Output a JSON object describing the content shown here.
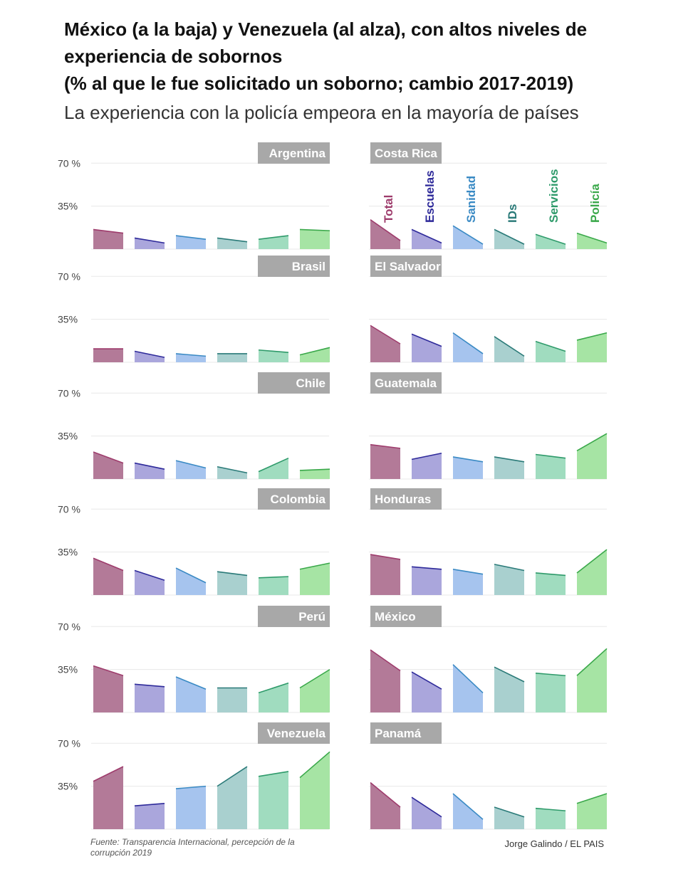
{
  "title": {
    "line1": "México (a la baja) y Venezuela (al alza), con altos niveles de experiencia de sobornos",
    "line2": "(% al que le fue solicitado un soborno; cambio 2017-2019)"
  },
  "subtitle": "La experiencia con la policía empeora en la mayoría de países",
  "footer": {
    "source": "Fuente: Transparencia Internacional, percepción de la corrupción 2019",
    "credit": "Jorge Galindo / EL PAIS"
  },
  "colors": {
    "Total": "#9e3c6c",
    "Escuelas": "#2e2a9a",
    "Sanidad": "#3a8ac4",
    "IDs": "#2a7a78",
    "Servicios": "#2e9a6a",
    "Policía": "#3aa84a",
    "fill_Total": "#b37a98",
    "fill_Escuelas": "#aaa6dc",
    "fill_Sanidad": "#a6c4ee",
    "fill_IDs": "#a9d0cf",
    "fill_Servicios": "#a0dcbf",
    "fill_Policía": "#a6e4a4",
    "label_bg": "#a8a8a8"
  },
  "chart_data": {
    "type": "area",
    "ylim": [
      0,
      70
    ],
    "yticks": [
      "70 %",
      "35%"
    ],
    "categories": [
      "Total",
      "Escuelas",
      "Sanidad",
      "IDs",
      "Servicios",
      "Policía"
    ],
    "x": [
      "2017",
      "2019"
    ],
    "panels": [
      {
        "country": "Argentina",
        "series": {
          "Total": [
            16,
            13
          ],
          "Escuelas": [
            9,
            5
          ],
          "Sanidad": [
            11,
            8
          ],
          "IDs": [
            9,
            6
          ],
          "Servicios": [
            8,
            11
          ],
          "Policía": [
            16,
            15
          ]
        }
      },
      {
        "country": "Costa Rica",
        "series": {
          "Total": [
            24,
            7
          ],
          "Escuelas": [
            16,
            5
          ],
          "Sanidad": [
            19,
            4
          ],
          "IDs": [
            16,
            4
          ],
          "Servicios": [
            12,
            4
          ],
          "Policía": [
            13,
            5
          ]
        }
      },
      {
        "country": "Brasil",
        "series": {
          "Total": [
            11,
            11
          ],
          "Escuelas": [
            9,
            4
          ],
          "Sanidad": [
            7,
            5
          ],
          "IDs": [
            7,
            7
          ],
          "Servicios": [
            10,
            8
          ],
          "Policía": [
            6,
            12
          ]
        }
      },
      {
        "country": "El Salvador",
        "series": {
          "Total": [
            30,
            15
          ],
          "Escuelas": [
            23,
            13
          ],
          "Sanidad": [
            24,
            7
          ],
          "IDs": [
            21,
            5
          ],
          "Servicios": [
            17,
            9
          ],
          "Policía": [
            18,
            24
          ]
        }
      },
      {
        "country": "Chile",
        "series": {
          "Total": [
            22,
            13
          ],
          "Escuelas": [
            13,
            8
          ],
          "Sanidad": [
            15,
            9
          ],
          "IDs": [
            10,
            5
          ],
          "Servicios": [
            6,
            17
          ],
          "Policía": [
            7,
            8
          ]
        }
      },
      {
        "country": "Guatemala",
        "series": {
          "Total": [
            28,
            25
          ],
          "Escuelas": [
            16,
            21
          ],
          "Sanidad": [
            18,
            14
          ],
          "IDs": [
            18,
            14
          ],
          "Servicios": [
            20,
            17
          ],
          "Policía": [
            23,
            37
          ]
        }
      },
      {
        "country": "Colombia",
        "series": {
          "Total": [
            30,
            20
          ],
          "Escuelas": [
            20,
            12
          ],
          "Sanidad": [
            22,
            10
          ],
          "IDs": [
            19,
            16
          ],
          "Servicios": [
            14,
            15
          ],
          "Policía": [
            21,
            26
          ]
        }
      },
      {
        "country": "Honduras",
        "series": {
          "Total": [
            33,
            29
          ],
          "Escuelas": [
            23,
            21
          ],
          "Sanidad": [
            21,
            17
          ],
          "IDs": [
            25,
            20
          ],
          "Servicios": [
            18,
            16
          ],
          "Policía": [
            18,
            37
          ]
        }
      },
      {
        "country": "Perú",
        "series": {
          "Total": [
            38,
            30
          ],
          "Escuelas": [
            23,
            21
          ],
          "Sanidad": [
            29,
            19
          ],
          "IDs": [
            20,
            20
          ],
          "Servicios": [
            16,
            24
          ],
          "Policía": [
            20,
            35
          ]
        }
      },
      {
        "country": "México",
        "series": {
          "Total": [
            51,
            34
          ],
          "Escuelas": [
            33,
            19
          ],
          "Sanidad": [
            39,
            16
          ],
          "IDs": [
            37,
            25
          ],
          "Servicios": [
            32,
            30
          ],
          "Policía": [
            30,
            52
          ]
        }
      },
      {
        "country": "Venezuela",
        "series": {
          "Total": [
            39,
            51
          ],
          "Escuelas": [
            19,
            21
          ],
          "Sanidad": [
            33,
            35
          ],
          "IDs": [
            35,
            51
          ],
          "Servicios": [
            43,
            47
          ],
          "Policía": [
            42,
            63
          ]
        }
      },
      {
        "country": "Panamá",
        "series": {
          "Total": [
            38,
            18
          ],
          "Escuelas": [
            26,
            10
          ],
          "Sanidad": [
            29,
            8
          ],
          "IDs": [
            18,
            10
          ],
          "Servicios": [
            17,
            15
          ],
          "Policía": [
            21,
            29
          ]
        }
      }
    ]
  }
}
